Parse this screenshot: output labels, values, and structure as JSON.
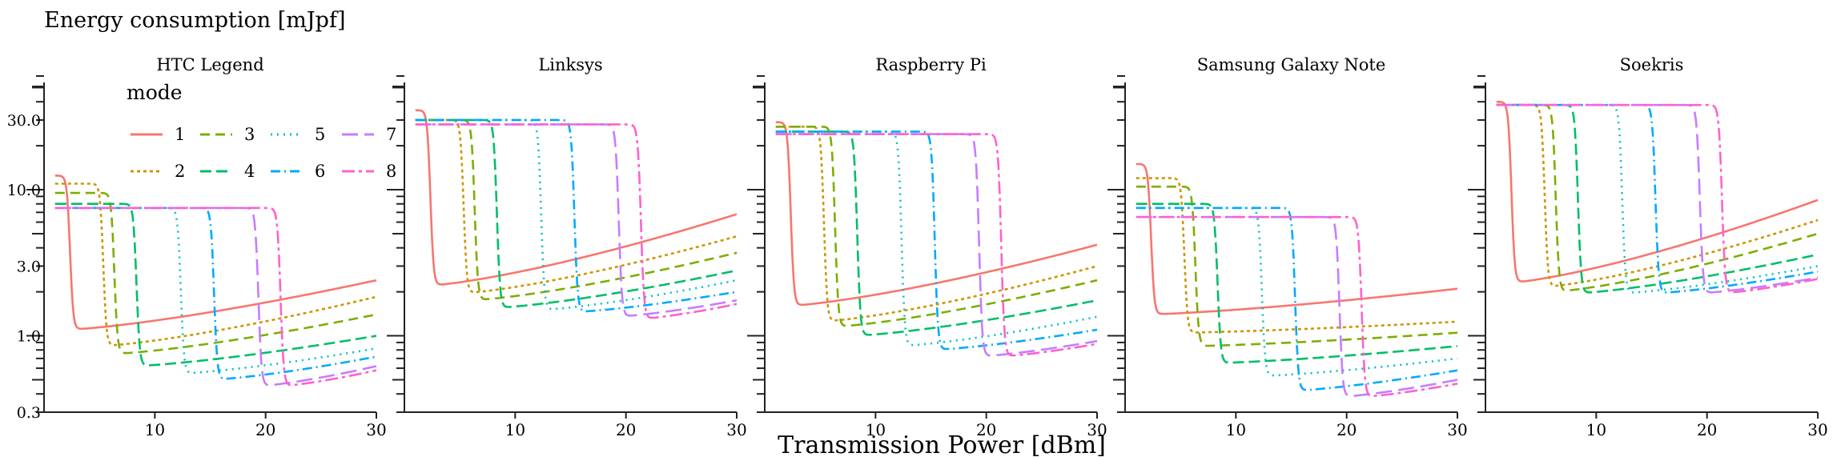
{
  "figure": {
    "ylabel": "Energy consumption [mJpf]",
    "xlabel": "Transmission Power [dBm]"
  },
  "legend": {
    "title": "mode",
    "entries": [
      "1",
      "2",
      "3",
      "4",
      "5",
      "6",
      "7",
      "8"
    ]
  },
  "axes": {
    "x_ticks": [
      "10",
      "20",
      "30"
    ],
    "y_ticks": [
      "0.3",
      "1.0",
      "3.0",
      "10.0",
      "30.0"
    ]
  },
  "chart_data": {
    "type": "line",
    "xlabel": "Transmission Power [dBm]",
    "ylabel": "Energy consumption [mJpf]",
    "xlim": [
      0,
      30
    ],
    "ylim": [
      0.3,
      60
    ],
    "y_scale": "log",
    "legend_placement": "top-left",
    "grid": false,
    "series_colors": [
      "#F8766D",
      "#CD9600",
      "#7CAE00",
      "#00BE67",
      "#00BFC4",
      "#00A9FF",
      "#C77CFF",
      "#FF61CC"
    ],
    "series_dash": [
      "solid",
      "dotted-dense",
      "dashed",
      "dashed-long",
      "dotted",
      "dash-dot",
      "long-dash",
      "two-dash"
    ],
    "thresholds": [
      2,
      5,
      6,
      8,
      12,
      15,
      19,
      21
    ],
    "panels": [
      {
        "title": "HTC Legend",
        "series": [
          {
            "name": "1",
            "plateau": 12.5,
            "floor": 1.1,
            "end": 2.4
          },
          {
            "name": "2",
            "plateau": 11,
            "floor": 0.85,
            "end": 1.85
          },
          {
            "name": "3",
            "plateau": 9.5,
            "floor": 0.75,
            "end": 1.4
          },
          {
            "name": "4",
            "plateau": 8,
            "floor": 0.62,
            "end": 1.0
          },
          {
            "name": "5",
            "plateau": 7.5,
            "floor": 0.55,
            "end": 0.82
          },
          {
            "name": "6",
            "plateau": 7.5,
            "floor": 0.5,
            "end": 0.72
          },
          {
            "name": "7",
            "plateau": 7.5,
            "floor": 0.45,
            "end": 0.62
          },
          {
            "name": "8",
            "plateau": 7.5,
            "floor": 0.45,
            "end": 0.58
          }
        ]
      },
      {
        "title": "Linksys",
        "series": [
          {
            "name": "1",
            "plateau": 35,
            "floor": 2.2,
            "end": 6.8
          },
          {
            "name": "2",
            "plateau": 30,
            "floor": 1.95,
            "end": 4.8
          },
          {
            "name": "3",
            "plateau": 30,
            "floor": 1.75,
            "end": 3.7
          },
          {
            "name": "4",
            "plateau": 30,
            "floor": 1.55,
            "end": 2.8
          },
          {
            "name": "5",
            "plateau": 30,
            "floor": 1.5,
            "end": 2.4
          },
          {
            "name": "6",
            "plateau": 30,
            "floor": 1.45,
            "end": 2.0
          },
          {
            "name": "7",
            "plateau": 28,
            "floor": 1.35,
            "end": 1.75
          },
          {
            "name": "8",
            "plateau": 28,
            "floor": 1.3,
            "end": 1.65
          }
        ]
      },
      {
        "title": "Raspberry Pi",
        "series": [
          {
            "name": "1",
            "plateau": 29,
            "floor": 1.6,
            "end": 4.2
          },
          {
            "name": "2",
            "plateau": 27,
            "floor": 1.25,
            "end": 3.0
          },
          {
            "name": "3",
            "plateau": 27,
            "floor": 1.15,
            "end": 2.4
          },
          {
            "name": "4",
            "plateau": 25,
            "floor": 1.0,
            "end": 1.75
          },
          {
            "name": "5",
            "plateau": 25,
            "floor": 0.85,
            "end": 1.35
          },
          {
            "name": "6",
            "plateau": 25,
            "floor": 0.8,
            "end": 1.1
          },
          {
            "name": "7",
            "plateau": 24,
            "floor": 0.72,
            "end": 0.92
          },
          {
            "name": "8",
            "plateau": 24,
            "floor": 0.72,
            "end": 0.88
          }
        ]
      },
      {
        "title": "Samsung Galaxy Note",
        "series": [
          {
            "name": "1",
            "plateau": 15,
            "floor": 1.4,
            "end": 2.1
          },
          {
            "name": "2",
            "plateau": 12,
            "floor": 1.05,
            "end": 1.25
          },
          {
            "name": "3",
            "plateau": 10.5,
            "floor": 0.85,
            "end": 1.05
          },
          {
            "name": "4",
            "plateau": 8,
            "floor": 0.65,
            "end": 0.85
          },
          {
            "name": "5",
            "plateau": 7.5,
            "floor": 0.53,
            "end": 0.7
          },
          {
            "name": "6",
            "plateau": 7.5,
            "floor": 0.42,
            "end": 0.58
          },
          {
            "name": "7",
            "plateau": 6.5,
            "floor": 0.38,
            "end": 0.5
          },
          {
            "name": "8",
            "plateau": 6.5,
            "floor": 0.38,
            "end": 0.47
          }
        ]
      },
      {
        "title": "Soekris",
        "series": [
          {
            "name": "1",
            "plateau": 40,
            "floor": 2.3,
            "end": 8.5
          },
          {
            "name": "2",
            "plateau": 38,
            "floor": 2.15,
            "end": 6.2
          },
          {
            "name": "3",
            "plateau": 38,
            "floor": 2.0,
            "end": 5.0
          },
          {
            "name": "4",
            "plateau": 38,
            "floor": 1.95,
            "end": 3.6
          },
          {
            "name": "5",
            "plateau": 38,
            "floor": 1.95,
            "end": 3.0
          },
          {
            "name": "6",
            "plateau": 38,
            "floor": 1.95,
            "end": 2.75
          },
          {
            "name": "7",
            "plateau": 38,
            "floor": 1.95,
            "end": 2.5
          },
          {
            "name": "8",
            "plateau": 38,
            "floor": 1.95,
            "end": 2.45
          }
        ]
      }
    ]
  }
}
